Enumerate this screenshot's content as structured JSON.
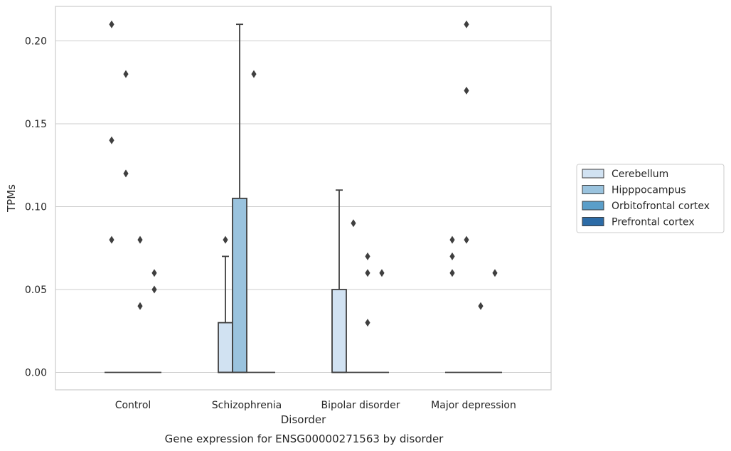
{
  "caption": "Gene expression for ENSG00000271563 by disorder",
  "chart_data": {
    "type": "box",
    "xlabel": "Disorder",
    "ylabel": "TPMs",
    "ylim": [
      -0.01,
      0.22
    ],
    "yticks": [
      "0.00",
      "0.05",
      "0.10",
      "0.15",
      "0.20"
    ],
    "grid": "horizontal",
    "legend_position": "right",
    "categories": [
      "Control",
      "Schizophrenia",
      "Bipolar disorder",
      "Major depression"
    ],
    "series": [
      {
        "name": "Cerebellum",
        "color": "#d1e2f2"
      },
      {
        "name": "Hipppocampus",
        "color": "#9ac3de"
      },
      {
        "name": "Orbitofrontal cortex",
        "color": "#5a9ec9"
      },
      {
        "name": "Prefrontal cortex",
        "color": "#2c6ba6"
      }
    ],
    "boxes": [
      {
        "category": 0,
        "series": 0,
        "q1": 0,
        "median": 0,
        "q3": 0,
        "whisker_low": 0,
        "whisker_high": 0,
        "outliers": [
          0.08,
          0.14,
          0.21
        ]
      },
      {
        "category": 0,
        "series": 1,
        "q1": 0,
        "median": 0,
        "q3": 0,
        "whisker_low": 0,
        "whisker_high": 0,
        "outliers": [
          0.12,
          0.18
        ]
      },
      {
        "category": 0,
        "series": 2,
        "q1": 0,
        "median": 0,
        "q3": 0,
        "whisker_low": 0,
        "whisker_high": 0,
        "outliers": [
          0.04,
          0.08
        ]
      },
      {
        "category": 0,
        "series": 3,
        "q1": 0,
        "median": 0,
        "q3": 0,
        "whisker_low": 0,
        "whisker_high": 0,
        "outliers": [
          0.05,
          0.06
        ]
      },
      {
        "category": 1,
        "series": 0,
        "q1": 0,
        "median": 0,
        "q3": 0.03,
        "whisker_low": 0,
        "whisker_high": 0.07,
        "outliers": [
          0.08
        ]
      },
      {
        "category": 1,
        "series": 1,
        "q1": 0,
        "median": 0,
        "q3": 0.105,
        "whisker_low": 0,
        "whisker_high": 0.21,
        "outliers": []
      },
      {
        "category": 1,
        "series": 2,
        "q1": 0,
        "median": 0,
        "q3": 0,
        "whisker_low": 0,
        "whisker_high": 0,
        "outliers": [
          0.18
        ]
      },
      {
        "category": 1,
        "series": 3,
        "q1": 0,
        "median": 0,
        "q3": 0,
        "whisker_low": 0,
        "whisker_high": 0,
        "outliers": []
      },
      {
        "category": 2,
        "series": 0,
        "q1": 0,
        "median": 0,
        "q3": 0.05,
        "whisker_low": 0,
        "whisker_high": 0.11,
        "outliers": []
      },
      {
        "category": 2,
        "series": 1,
        "q1": 0,
        "median": 0,
        "q3": 0,
        "whisker_low": 0,
        "whisker_high": 0,
        "outliers": [
          0.09
        ]
      },
      {
        "category": 2,
        "series": 2,
        "q1": 0,
        "median": 0,
        "q3": 0,
        "whisker_low": 0,
        "whisker_high": 0,
        "outliers": [
          0.03,
          0.06,
          0.07
        ]
      },
      {
        "category": 2,
        "series": 3,
        "q1": 0,
        "median": 0,
        "q3": 0,
        "whisker_low": 0,
        "whisker_high": 0,
        "outliers": [
          0.06
        ]
      },
      {
        "category": 3,
        "series": 0,
        "q1": 0,
        "median": 0,
        "q3": 0,
        "whisker_low": 0,
        "whisker_high": 0,
        "outliers": [
          0.06,
          0.07,
          0.08
        ]
      },
      {
        "category": 3,
        "series": 1,
        "q1": 0,
        "median": 0,
        "q3": 0,
        "whisker_low": 0,
        "whisker_high": 0,
        "outliers": [
          0.08,
          0.17,
          0.21
        ]
      },
      {
        "category": 3,
        "series": 2,
        "q1": 0,
        "median": 0,
        "q3": 0,
        "whisker_low": 0,
        "whisker_high": 0,
        "outliers": [
          0.04
        ]
      },
      {
        "category": 3,
        "series": 3,
        "q1": 0,
        "median": 0,
        "q3": 0,
        "whisker_low": 0,
        "whisker_high": 0,
        "outliers": [
          0.06
        ]
      }
    ]
  }
}
